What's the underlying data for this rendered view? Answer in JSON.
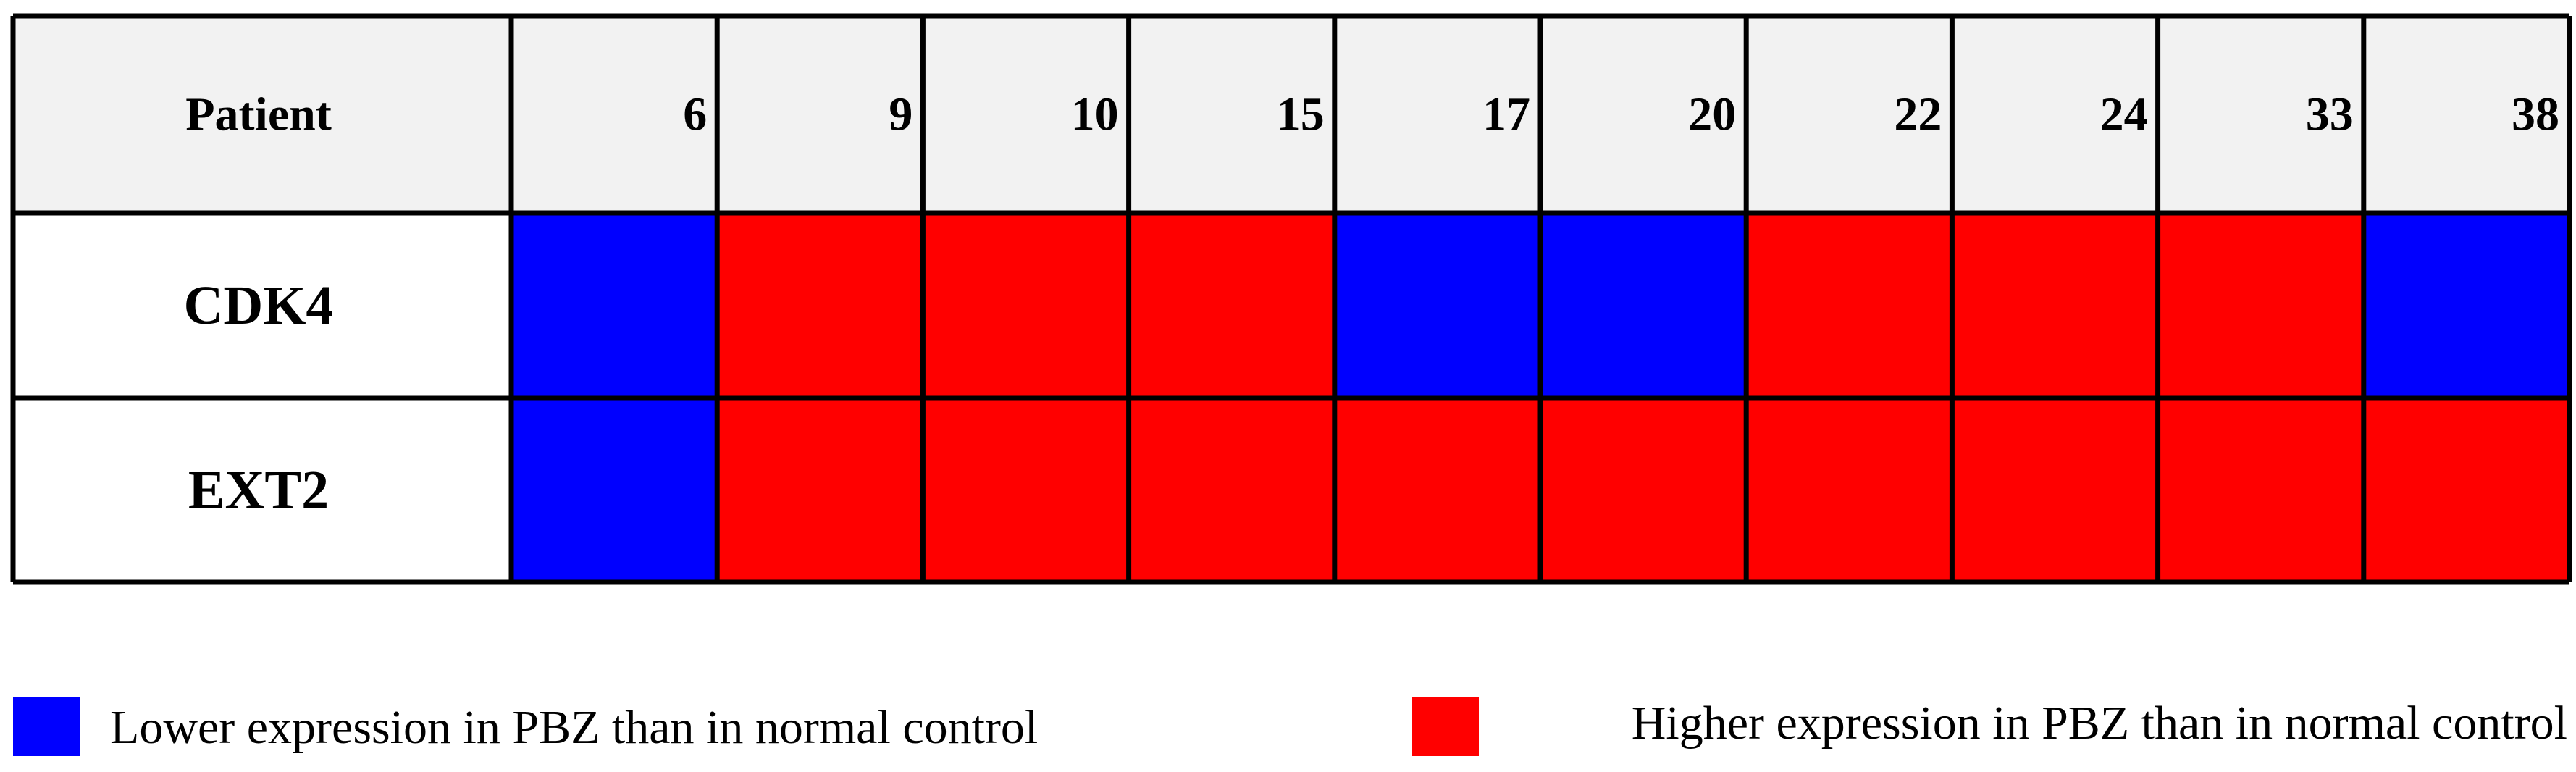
{
  "chart_data": {
    "type": "heatmap",
    "header_label": "Patient",
    "columns": [
      "6",
      "9",
      "10",
      "15",
      "17",
      "20",
      "22",
      "24",
      "33",
      "38"
    ],
    "rows": [
      {
        "label": "CDK4",
        "values": [
          "lower",
          "higher",
          "higher",
          "higher",
          "lower",
          "lower",
          "higher",
          "higher",
          "higher",
          "lower"
        ]
      },
      {
        "label": "EXT2",
        "values": [
          "lower",
          "higher",
          "higher",
          "higher",
          "higher",
          "higher",
          "higher",
          "higher",
          "higher",
          "higher"
        ]
      }
    ],
    "categories": {
      "lower": {
        "color": "#0000ff",
        "label": "Lower expression in PBZ than in normal control"
      },
      "higher": {
        "color": "#ff0000",
        "label": "Higher expression in PBZ than in normal control"
      }
    },
    "header_background": "#f2f2f2",
    "legend_placement": "bottom"
  }
}
